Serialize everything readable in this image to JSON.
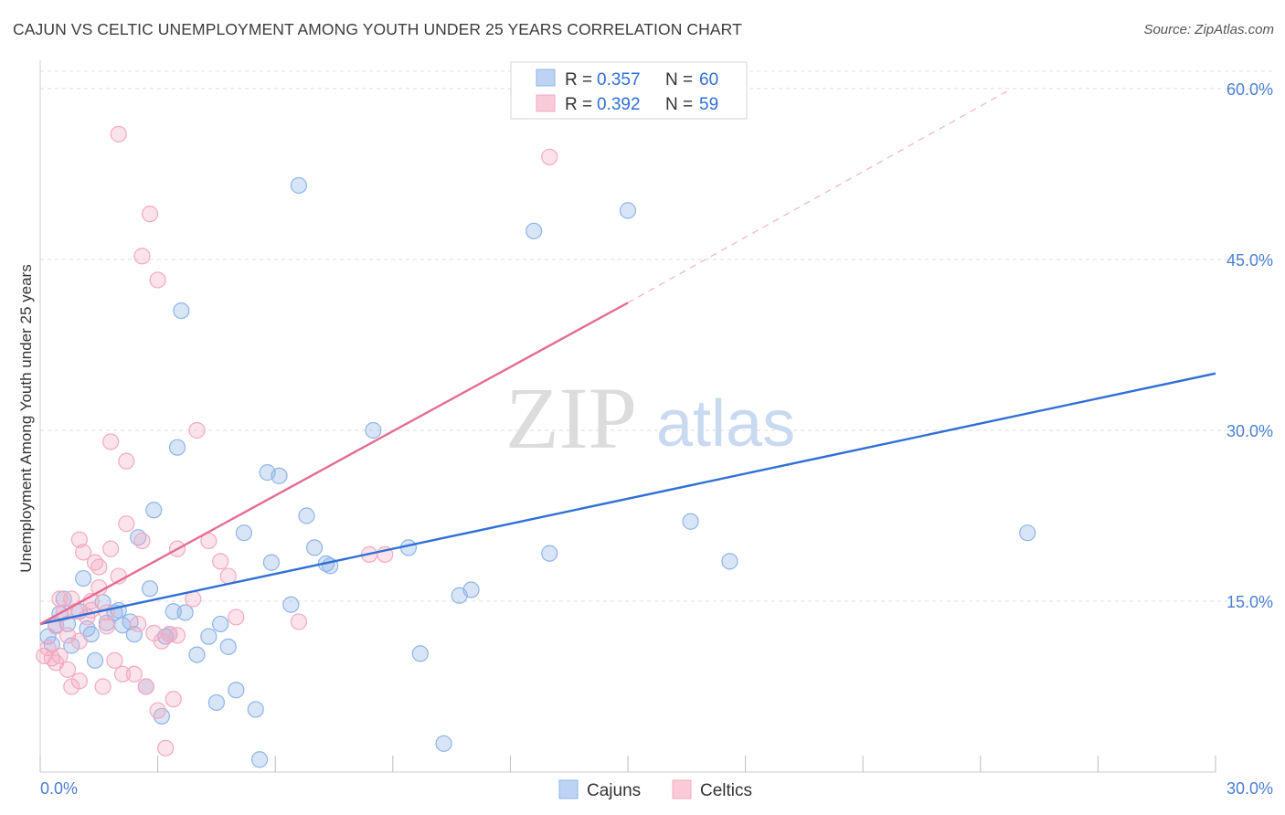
{
  "title": "CAJUN VS CELTIC UNEMPLOYMENT AMONG YOUTH UNDER 25 YEARS CORRELATION CHART",
  "source": "Source: ZipAtlas.com",
  "watermark": {
    "zip": "ZIP",
    "atlas": "atlas"
  },
  "chart_data": {
    "type": "scatter",
    "title": "CAJUN VS CELTIC UNEMPLOYMENT AMONG YOUTH UNDER 25 YEARS CORRELATION CHART",
    "xlabel": "",
    "ylabel": "Unemployment Among Youth under 25 years",
    "xlim": [
      0,
      30
    ],
    "ylim": [
      0,
      60
    ],
    "x_tick_labels": [
      "0.0%",
      "30.0%"
    ],
    "y_ticks": [
      15,
      30,
      45,
      60
    ],
    "y_tick_labels": [
      "15.0%",
      "30.0%",
      "45.0%",
      "60.0%"
    ],
    "grid": true,
    "legend": {
      "position": "top-center",
      "entries": [
        {
          "r_label": "R =",
          "r_value": "0.357",
          "n_label": "N =",
          "n_value": "60"
        },
        {
          "r_label": "R =",
          "r_value": "0.392",
          "n_label": "N =",
          "n_value": "59"
        }
      ]
    },
    "series": [
      {
        "name": "Cajuns",
        "color": "#8fb4e8",
        "line_color": "#2f6fd6",
        "trend": {
          "x": [
            0,
            30
          ],
          "y": [
            13.0,
            35.0
          ],
          "dashed_ext": null
        },
        "points": [
          [
            0.2,
            11.9
          ],
          [
            0.3,
            11.2
          ],
          [
            0.4,
            12.9
          ],
          [
            0.5,
            13.9
          ],
          [
            0.6,
            15.2
          ],
          [
            0.7,
            13.0
          ],
          [
            0.8,
            11.1
          ],
          [
            1.0,
            14.1
          ],
          [
            1.1,
            17.0
          ],
          [
            1.2,
            12.6
          ],
          [
            1.3,
            12.1
          ],
          [
            1.4,
            9.8
          ],
          [
            1.6,
            14.9
          ],
          [
            1.7,
            13.1
          ],
          [
            1.9,
            14.0
          ],
          [
            2.0,
            14.2
          ],
          [
            2.1,
            12.9
          ],
          [
            2.3,
            13.2
          ],
          [
            2.4,
            12.1
          ],
          [
            2.5,
            20.6
          ],
          [
            2.7,
            7.5
          ],
          [
            2.8,
            16.1
          ],
          [
            2.9,
            23.0
          ],
          [
            3.1,
            4.9
          ],
          [
            3.2,
            11.9
          ],
          [
            3.3,
            12.1
          ],
          [
            3.4,
            14.1
          ],
          [
            3.5,
            28.5
          ],
          [
            3.6,
            40.5
          ],
          [
            3.7,
            14.0
          ],
          [
            4.0,
            10.3
          ],
          [
            4.3,
            11.9
          ],
          [
            4.5,
            6.1
          ],
          [
            4.6,
            13.0
          ],
          [
            4.8,
            11.0
          ],
          [
            5.0,
            7.2
          ],
          [
            5.2,
            21.0
          ],
          [
            5.5,
            5.5
          ],
          [
            5.6,
            1.1
          ],
          [
            5.8,
            26.3
          ],
          [
            5.9,
            18.4
          ],
          [
            6.1,
            26.0
          ],
          [
            6.4,
            14.7
          ],
          [
            6.6,
            51.5
          ],
          [
            6.8,
            22.5
          ],
          [
            7.0,
            19.7
          ],
          [
            7.3,
            18.3
          ],
          [
            7.4,
            18.1
          ],
          [
            8.5,
            30.0
          ],
          [
            9.4,
            19.7
          ],
          [
            9.7,
            10.4
          ],
          [
            10.3,
            2.5
          ],
          [
            10.7,
            15.5
          ],
          [
            11.0,
            16.0
          ],
          [
            12.6,
            47.5
          ],
          [
            13.0,
            19.2
          ],
          [
            15.0,
            49.3
          ],
          [
            16.6,
            22.0
          ],
          [
            17.6,
            18.5
          ],
          [
            25.2,
            21.0
          ]
        ]
      },
      {
        "name": "Celtics",
        "color": "#f4a9c0",
        "line_color": "#e46b93",
        "trend": {
          "x": [
            0,
            15.0
          ],
          "y": [
            13.0,
            41.2
          ],
          "dashed_ext": {
            "x": [
              15.0,
              24.8
            ],
            "y": [
              41.2,
              60.0
            ]
          }
        },
        "points": [
          [
            0.1,
            10.2
          ],
          [
            0.2,
            10.9
          ],
          [
            0.3,
            10.0
          ],
          [
            0.4,
            12.8
          ],
          [
            0.4,
            9.6
          ],
          [
            0.5,
            10.2
          ],
          [
            0.5,
            15.2
          ],
          [
            0.6,
            14.0
          ],
          [
            0.7,
            9.0
          ],
          [
            0.7,
            12.0
          ],
          [
            0.8,
            7.5
          ],
          [
            0.8,
            15.2
          ],
          [
            0.9,
            14.1
          ],
          [
            1.0,
            8.0
          ],
          [
            1.0,
            20.4
          ],
          [
            1.1,
            19.3
          ],
          [
            1.2,
            13.6
          ],
          [
            1.3,
            14.2
          ],
          [
            1.3,
            15.0
          ],
          [
            1.4,
            18.4
          ],
          [
            1.5,
            18.0
          ],
          [
            1.5,
            16.2
          ],
          [
            1.6,
            7.5
          ],
          [
            1.7,
            14.0
          ],
          [
            1.7,
            12.8
          ],
          [
            1.8,
            29.0
          ],
          [
            1.8,
            19.6
          ],
          [
            1.9,
            9.8
          ],
          [
            2.0,
            17.2
          ],
          [
            2.0,
            56.0
          ],
          [
            2.1,
            8.6
          ],
          [
            2.2,
            21.8
          ],
          [
            2.2,
            27.3
          ],
          [
            2.4,
            8.6
          ],
          [
            2.5,
            13.0
          ],
          [
            2.6,
            20.3
          ],
          [
            2.6,
            45.3
          ],
          [
            2.7,
            7.5
          ],
          [
            2.8,
            49.0
          ],
          [
            3.0,
            43.2
          ],
          [
            3.0,
            5.4
          ],
          [
            3.1,
            11.5
          ],
          [
            3.2,
            2.1
          ],
          [
            3.3,
            12.1
          ],
          [
            3.4,
            6.4
          ],
          [
            3.5,
            12.0
          ],
          [
            3.5,
            19.6
          ],
          [
            3.9,
            15.2
          ],
          [
            4.0,
            30.0
          ],
          [
            4.3,
            20.3
          ],
          [
            4.6,
            18.5
          ],
          [
            4.8,
            17.2
          ],
          [
            5.0,
            13.6
          ],
          [
            6.6,
            13.2
          ],
          [
            8.4,
            19.1
          ],
          [
            8.8,
            19.1
          ],
          [
            13.0,
            54.0
          ],
          [
            1.0,
            11.5
          ],
          [
            2.9,
            12.2
          ]
        ]
      }
    ]
  },
  "bottom_legend": [
    "Cajuns",
    "Celtics"
  ]
}
